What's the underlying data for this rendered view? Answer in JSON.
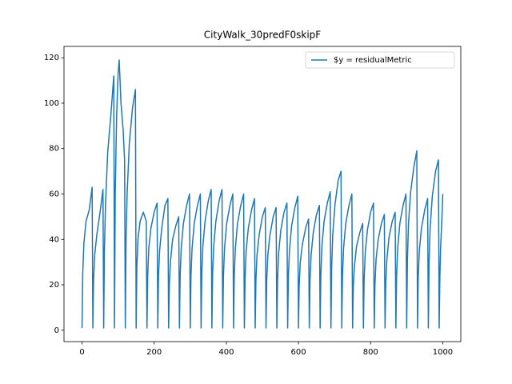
{
  "chart_data": {
    "type": "line",
    "title": "CityWalk_30predF0skipF",
    "x": [
      0,
      2,
      5,
      11,
      20,
      28,
      30,
      32,
      35,
      41,
      50,
      58,
      60,
      62,
      65,
      71,
      80,
      88,
      90,
      92,
      96,
      100,
      103,
      108,
      114,
      118,
      120,
      122,
      125,
      131,
      140,
      148,
      150,
      152,
      155,
      161,
      170,
      178,
      180,
      182,
      185,
      191,
      200,
      208,
      210,
      212,
      215,
      221,
      230,
      238,
      240,
      242,
      245,
      251,
      260,
      268,
      270,
      272,
      275,
      281,
      290,
      298,
      300,
      302,
      305,
      311,
      320,
      328,
      330,
      332,
      335,
      341,
      350,
      358,
      360,
      362,
      365,
      371,
      380,
      388,
      390,
      392,
      395,
      401,
      410,
      418,
      420,
      422,
      425,
      431,
      440,
      448,
      450,
      452,
      455,
      461,
      470,
      478,
      480,
      482,
      485,
      491,
      500,
      508,
      510,
      512,
      515,
      521,
      530,
      538,
      540,
      542,
      545,
      551,
      560,
      568,
      570,
      572,
      575,
      581,
      590,
      598,
      600,
      602,
      605,
      611,
      620,
      628,
      630,
      632,
      635,
      641,
      650,
      658,
      660,
      662,
      665,
      671,
      680,
      688,
      690,
      692,
      695,
      701,
      710,
      718,
      720,
      722,
      725,
      731,
      740,
      748,
      750,
      752,
      755,
      761,
      770,
      778,
      780,
      782,
      785,
      791,
      800,
      808,
      810,
      812,
      815,
      821,
      830,
      838,
      840,
      842,
      845,
      851,
      860,
      868,
      870,
      872,
      875,
      881,
      890,
      898,
      900,
      902,
      905,
      911,
      920,
      928,
      930,
      932,
      935,
      941,
      950,
      958,
      960,
      962,
      965,
      971,
      980,
      988,
      990,
      992,
      994,
      997,
      999,
      1000
    ],
    "series": [
      {
        "name": "$y = residualMetric",
        "color": "#1f77b4",
        "values": [
          1,
          25,
          38,
          48,
          53,
          63,
          1,
          22,
          33,
          42,
          52,
          62,
          1,
          35,
          55,
          78,
          95,
          112,
          1,
          60,
          95,
          113,
          119,
          100,
          88,
          75,
          1,
          40,
          60,
          82,
          98,
          106,
          1,
          28,
          40,
          48,
          52,
          48,
          1,
          24,
          36,
          45,
          52,
          56,
          1,
          24,
          35,
          45,
          55,
          58,
          1,
          20,
          30,
          40,
          46,
          50,
          1,
          24,
          36,
          47,
          55,
          60,
          1,
          24,
          36,
          47,
          55,
          60,
          1,
          25,
          37,
          48,
          57,
          62,
          1,
          25,
          37,
          48,
          57,
          62,
          1,
          24,
          36,
          47,
          55,
          60,
          1,
          24,
          36,
          47,
          55,
          60,
          1,
          23,
          35,
          45,
          53,
          58,
          1,
          22,
          33,
          42,
          50,
          54,
          1,
          22,
          33,
          42,
          50,
          54,
          1,
          22,
          34,
          44,
          52,
          56,
          1,
          24,
          35,
          46,
          54,
          59,
          1,
          20,
          30,
          38,
          45,
          49,
          1,
          22,
          33,
          43,
          51,
          55,
          1,
          24,
          37,
          48,
          56,
          61,
          1,
          28,
          42,
          55,
          66,
          70,
          1,
          24,
          36,
          47,
          55,
          60,
          1,
          19,
          28,
          37,
          43,
          47,
          1,
          22,
          34,
          44,
          52,
          56,
          1,
          20,
          31,
          40,
          47,
          51,
          1,
          21,
          31,
          41,
          48,
          52,
          1,
          24,
          36,
          47,
          55,
          60,
          1,
          31,
          47,
          61,
          72,
          79,
          1,
          23,
          35,
          45,
          53,
          58,
          1,
          30,
          45,
          59,
          70,
          75,
          1,
          24,
          36,
          47,
          55,
          60
        ]
      }
    ],
    "xlim": [
      -50,
      1050
    ],
    "ylim": [
      -5,
      125
    ],
    "xticks": [
      0,
      200,
      400,
      600,
      800,
      1000
    ],
    "yticks": [
      0,
      20,
      40,
      60,
      80,
      100,
      120
    ],
    "legend": "upper right",
    "grid": false
  }
}
